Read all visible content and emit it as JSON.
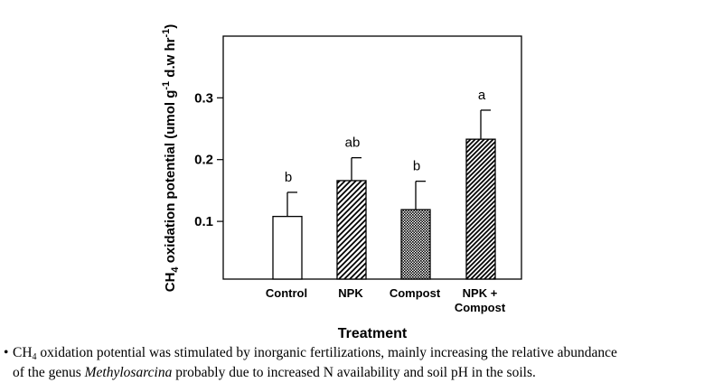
{
  "chart_data": {
    "type": "bar",
    "categories": [
      "Control",
      "NPK",
      "Compost",
      "NPK + Compost"
    ],
    "category_lines": [
      [
        "Control"
      ],
      [
        "NPK"
      ],
      [
        "Compost"
      ],
      [
        "NPK +",
        "Compost"
      ]
    ],
    "values": [
      0.108,
      0.166,
      0.119,
      0.233
    ],
    "errors": [
      0.039,
      0.037,
      0.046,
      0.047
    ],
    "significance_letters": [
      "b",
      "ab",
      "b",
      "a"
    ],
    "bar_fills": [
      "open",
      "diagonal-hatch",
      "crosshatch-dots",
      "diagonal-hatch-dense"
    ],
    "xlabel": "Treatment",
    "ylabel": {
      "prefix": "CH",
      "sub": "4",
      "middle": " oxidation potential (umol g",
      "sup1": "-1",
      "middle2": " d.w hr",
      "sup2": "-1",
      "suffix": ")"
    },
    "ylim": [
      0,
      0.4
    ],
    "yticks": [
      "0.1",
      "0.2",
      "0.3"
    ],
    "ytick_values": [
      0.1,
      0.2,
      0.3
    ],
    "colors": {
      "bar_stroke": "#000000",
      "bar_fill": "#ffffff",
      "axis": "#000000"
    }
  },
  "caption": {
    "bullet": "•",
    "line1": {
      "chem_prefix": "CH",
      "chem_sub": "4",
      "text": " oxidation potential was stimulated by inorganic fertilizations, mainly increasing the relative abundance"
    },
    "line2": {
      "before": "of the genus ",
      "italic": "Methylosarcina",
      "after": " probably due to increased N availability and soil pH in the soils."
    }
  }
}
